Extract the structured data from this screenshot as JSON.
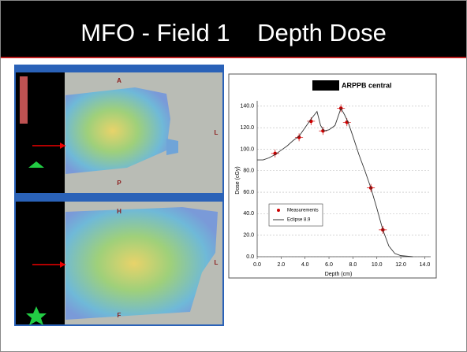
{
  "title": "MFO - Field 1    Depth Dose",
  "panels": [
    {
      "labels": [
        "A",
        "P",
        "L"
      ]
    },
    {
      "labels": [
        "H",
        "F",
        "L"
      ]
    }
  ],
  "chart_data": {
    "type": "line",
    "title": "ARPPB central",
    "x_label": "Depth (cm)",
    "y_label": "Dose (cGy)",
    "xlim": [
      0,
      14.5
    ],
    "ylim": [
      0,
      145
    ],
    "xticks": [
      {
        "value": 0,
        "label": "0.0"
      },
      {
        "value": 2,
        "label": "2.0"
      },
      {
        "value": 4,
        "label": "4.0"
      },
      {
        "value": 6,
        "label": "6.0"
      },
      {
        "value": 8,
        "label": "8.0"
      },
      {
        "value": 10,
        "label": "10.0"
      },
      {
        "value": 12,
        "label": "12.0"
      },
      {
        "value": 14,
        "label": "14.0"
      }
    ],
    "yticks": [
      {
        "value": 0,
        "label": "0.0"
      },
      {
        "value": 20,
        "label": "20.0"
      },
      {
        "value": 40,
        "label": "40.0"
      },
      {
        "value": 60,
        "label": "60.0"
      },
      {
        "value": 80,
        "label": "80.0"
      },
      {
        "value": 100,
        "label": "100.0"
      },
      {
        "value": 120,
        "label": "120.0"
      },
      {
        "value": 140,
        "label": "140.0"
      }
    ],
    "grid": true,
    "series": [
      {
        "name": "Measurements",
        "type": "scatter",
        "color": "#cc0000",
        "x": [
          1.5,
          3.5,
          4.5,
          5.5,
          7.0,
          7.5,
          9.5,
          10.5
        ],
        "values": [
          96,
          111,
          126,
          117,
          138,
          125,
          64,
          25
        ]
      },
      {
        "name": "Eclipse 8.9",
        "type": "line",
        "color": "#333333",
        "x": [
          0,
          0.5,
          1,
          1.5,
          2,
          2.5,
          3,
          3.5,
          4,
          4.5,
          5,
          5.3,
          5.6,
          6,
          6.5,
          7,
          7.3,
          7.6,
          8,
          8.5,
          9,
          9.5,
          10,
          10.5,
          11,
          11.5,
          12,
          13
        ],
        "values": [
          90,
          90,
          92,
          95,
          99,
          103,
          108,
          112,
          120,
          128,
          135,
          122,
          117,
          118,
          122,
          138,
          132,
          125,
          112,
          95,
          80,
          64,
          45,
          25,
          10,
          3,
          1,
          0
        ]
      }
    ]
  }
}
